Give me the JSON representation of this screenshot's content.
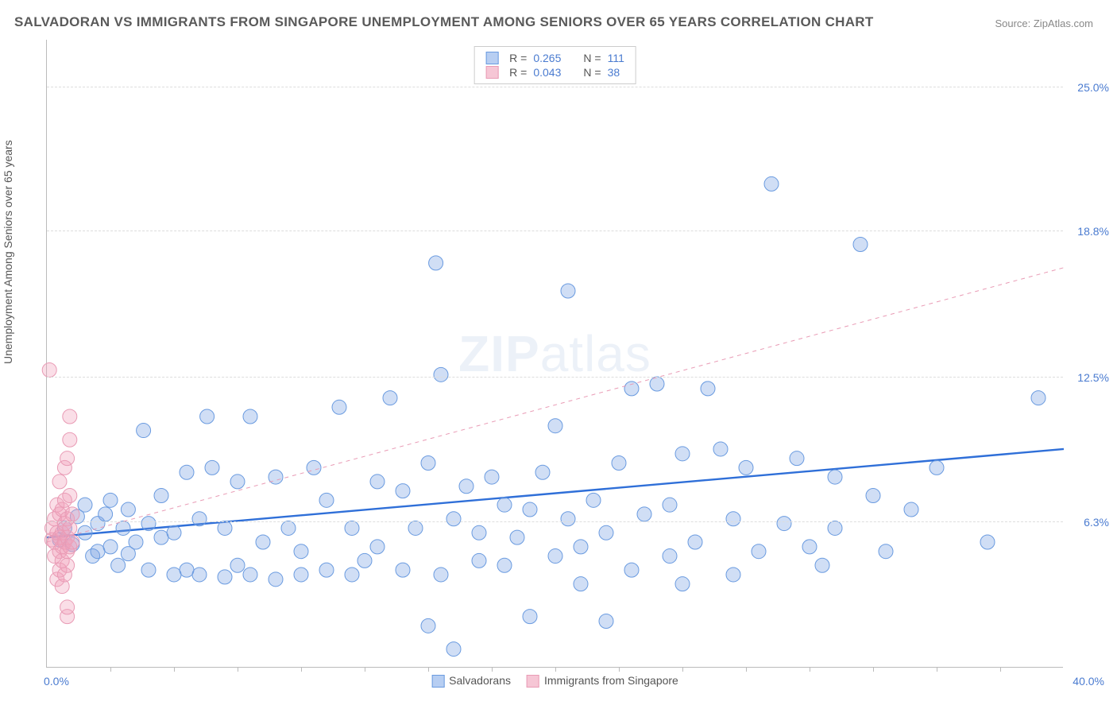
{
  "title": "SALVADORAN VS IMMIGRANTS FROM SINGAPORE UNEMPLOYMENT AMONG SENIORS OVER 65 YEARS CORRELATION CHART",
  "source": "Source: ZipAtlas.com",
  "ylabel": "Unemployment Among Seniors over 65 years",
  "watermark_a": "ZIP",
  "watermark_b": "atlas",
  "chart": {
    "type": "scatter",
    "background_color": "#ffffff",
    "grid_color": "#dddddd",
    "axis_color": "#bbbbbb",
    "tick_label_color": "#4a7bd0",
    "xlim": [
      0,
      40
    ],
    "ylim": [
      0,
      27
    ],
    "x_min_label": "0.0%",
    "x_max_label": "40.0%",
    "xtick_positions": [
      2.5,
      5,
      7.5,
      10,
      12.5,
      15,
      17.5,
      20,
      22.5,
      25,
      27.5,
      30,
      32.5,
      35,
      37.5
    ],
    "y_gridlines": [
      {
        "y": 6.3,
        "label": "6.3%"
      },
      {
        "y": 12.5,
        "label": "12.5%"
      },
      {
        "y": 18.8,
        "label": "18.8%"
      },
      {
        "y": 25.0,
        "label": "25.0%"
      }
    ],
    "marker_radius": 9,
    "marker_stroke_width": 1,
    "series": [
      {
        "name": "Salvadorans",
        "color_fill": "rgba(120,160,225,0.35)",
        "color_stroke": "#6a9be0",
        "legend_sq_fill": "#b7cef2",
        "legend_sq_border": "#6a9be0",
        "R_label": "R = ",
        "R": "0.265",
        "N_label": "N = ",
        "N": "111",
        "trend": {
          "x1": 0,
          "y1": 5.6,
          "x2": 40,
          "y2": 9.4,
          "stroke": "#2f6fd8",
          "width": 2.4,
          "dash": "none"
        },
        "points": [
          [
            0.5,
            5.5
          ],
          [
            0.7,
            6.0
          ],
          [
            1.0,
            5.3
          ],
          [
            1.2,
            6.5
          ],
          [
            1.5,
            5.8
          ],
          [
            1.5,
            7.0
          ],
          [
            1.8,
            4.8
          ],
          [
            2.0,
            6.2
          ],
          [
            2.0,
            5.0
          ],
          [
            2.3,
            6.6
          ],
          [
            2.5,
            5.2
          ],
          [
            2.5,
            7.2
          ],
          [
            2.8,
            4.4
          ],
          [
            3.0,
            6.0
          ],
          [
            3.2,
            6.8
          ],
          [
            3.2,
            4.9
          ],
          [
            3.5,
            5.4
          ],
          [
            3.8,
            10.2
          ],
          [
            4.0,
            6.2
          ],
          [
            4.0,
            4.2
          ],
          [
            4.5,
            5.6
          ],
          [
            4.5,
            7.4
          ],
          [
            5.0,
            4.0
          ],
          [
            5.0,
            5.8
          ],
          [
            5.5,
            8.4
          ],
          [
            5.5,
            4.2
          ],
          [
            6.0,
            4.0
          ],
          [
            6.0,
            6.4
          ],
          [
            6.3,
            10.8
          ],
          [
            6.5,
            8.6
          ],
          [
            7.0,
            3.9
          ],
          [
            7.0,
            6.0
          ],
          [
            7.5,
            4.4
          ],
          [
            7.5,
            8.0
          ],
          [
            8.0,
            10.8
          ],
          [
            8.0,
            4.0
          ],
          [
            8.5,
            5.4
          ],
          [
            9.0,
            8.2
          ],
          [
            9.0,
            3.8
          ],
          [
            9.5,
            6.0
          ],
          [
            10.0,
            4.0
          ],
          [
            10.0,
            5.0
          ],
          [
            10.5,
            8.6
          ],
          [
            11.0,
            4.2
          ],
          [
            11.0,
            7.2
          ],
          [
            11.5,
            11.2
          ],
          [
            12.0,
            6.0
          ],
          [
            12.0,
            4.0
          ],
          [
            12.5,
            4.6
          ],
          [
            13.0,
            8.0
          ],
          [
            13.0,
            5.2
          ],
          [
            13.5,
            11.6
          ],
          [
            14.0,
            7.6
          ],
          [
            14.0,
            4.2
          ],
          [
            14.5,
            6.0
          ],
          [
            15.0,
            8.8
          ],
          [
            15.0,
            1.8
          ],
          [
            15.3,
            17.4
          ],
          [
            15.5,
            4.0
          ],
          [
            15.5,
            12.6
          ],
          [
            16.0,
            6.4
          ],
          [
            16.0,
            0.8
          ],
          [
            16.5,
            7.8
          ],
          [
            17.0,
            4.6
          ],
          [
            17.0,
            5.8
          ],
          [
            17.5,
            8.2
          ],
          [
            18.0,
            7.0
          ],
          [
            18.0,
            4.4
          ],
          [
            18.5,
            5.6
          ],
          [
            19.0,
            2.2
          ],
          [
            19.0,
            6.8
          ],
          [
            19.5,
            8.4
          ],
          [
            20.0,
            10.4
          ],
          [
            20.0,
            4.8
          ],
          [
            20.5,
            6.4
          ],
          [
            20.5,
            16.2
          ],
          [
            21.0,
            3.6
          ],
          [
            21.0,
            5.2
          ],
          [
            21.5,
            7.2
          ],
          [
            22.0,
            2.0
          ],
          [
            22.0,
            5.8
          ],
          [
            22.5,
            8.8
          ],
          [
            23.0,
            4.2
          ],
          [
            23.0,
            12.0
          ],
          [
            23.5,
            6.6
          ],
          [
            24.0,
            12.2
          ],
          [
            24.5,
            4.8
          ],
          [
            24.5,
            7.0
          ],
          [
            25.0,
            3.6
          ],
          [
            25.0,
            9.2
          ],
          [
            25.5,
            5.4
          ],
          [
            26.0,
            12.0
          ],
          [
            26.5,
            9.4
          ],
          [
            27.0,
            6.4
          ],
          [
            27.0,
            4.0
          ],
          [
            27.5,
            8.6
          ],
          [
            28.0,
            5.0
          ],
          [
            28.5,
            20.8
          ],
          [
            29.0,
            6.2
          ],
          [
            29.5,
            9.0
          ],
          [
            30.0,
            5.2
          ],
          [
            30.5,
            4.4
          ],
          [
            31.0,
            6.0
          ],
          [
            31.0,
            8.2
          ],
          [
            32.0,
            18.2
          ],
          [
            32.5,
            7.4
          ],
          [
            33.0,
            5.0
          ],
          [
            34.0,
            6.8
          ],
          [
            35.0,
            8.6
          ],
          [
            37.0,
            5.4
          ],
          [
            39.0,
            11.6
          ]
        ]
      },
      {
        "name": "Immigrants from Singapore",
        "color_fill": "rgba(240,160,185,0.35)",
        "color_stroke": "#e99bb5",
        "legend_sq_fill": "#f6c6d5",
        "legend_sq_border": "#e99bb5",
        "R_label": "R = ",
        "R": "0.043",
        "N_label": "N = ",
        "N": "38",
        "trend": {
          "x1": 0,
          "y1": 5.4,
          "x2": 40,
          "y2": 17.2,
          "stroke": "#e99bb5",
          "width": 1,
          "dash": "5,5"
        },
        "points": [
          [
            0.2,
            5.5
          ],
          [
            0.2,
            6.0
          ],
          [
            0.3,
            4.8
          ],
          [
            0.3,
            5.4
          ],
          [
            0.3,
            6.4
          ],
          [
            0.4,
            3.8
          ],
          [
            0.4,
            5.8
          ],
          [
            0.4,
            7.0
          ],
          [
            0.5,
            4.2
          ],
          [
            0.5,
            5.0
          ],
          [
            0.5,
            5.6
          ],
          [
            0.5,
            6.6
          ],
          [
            0.5,
            8.0
          ],
          [
            0.6,
            3.5
          ],
          [
            0.6,
            4.6
          ],
          [
            0.6,
            5.2
          ],
          [
            0.6,
            5.8
          ],
          [
            0.6,
            6.8
          ],
          [
            0.7,
            4.0
          ],
          [
            0.7,
            5.4
          ],
          [
            0.7,
            6.2
          ],
          [
            0.7,
            7.2
          ],
          [
            0.7,
            8.6
          ],
          [
            0.8,
            2.2
          ],
          [
            0.8,
            2.6
          ],
          [
            0.8,
            4.4
          ],
          [
            0.8,
            5.0
          ],
          [
            0.8,
            5.6
          ],
          [
            0.8,
            6.4
          ],
          [
            0.8,
            9.0
          ],
          [
            0.9,
            5.2
          ],
          [
            0.9,
            6.0
          ],
          [
            0.9,
            7.4
          ],
          [
            0.9,
            9.8
          ],
          [
            0.9,
            10.8
          ],
          [
            1.0,
            5.4
          ],
          [
            1.0,
            6.6
          ],
          [
            0.1,
            12.8
          ]
        ]
      }
    ]
  }
}
